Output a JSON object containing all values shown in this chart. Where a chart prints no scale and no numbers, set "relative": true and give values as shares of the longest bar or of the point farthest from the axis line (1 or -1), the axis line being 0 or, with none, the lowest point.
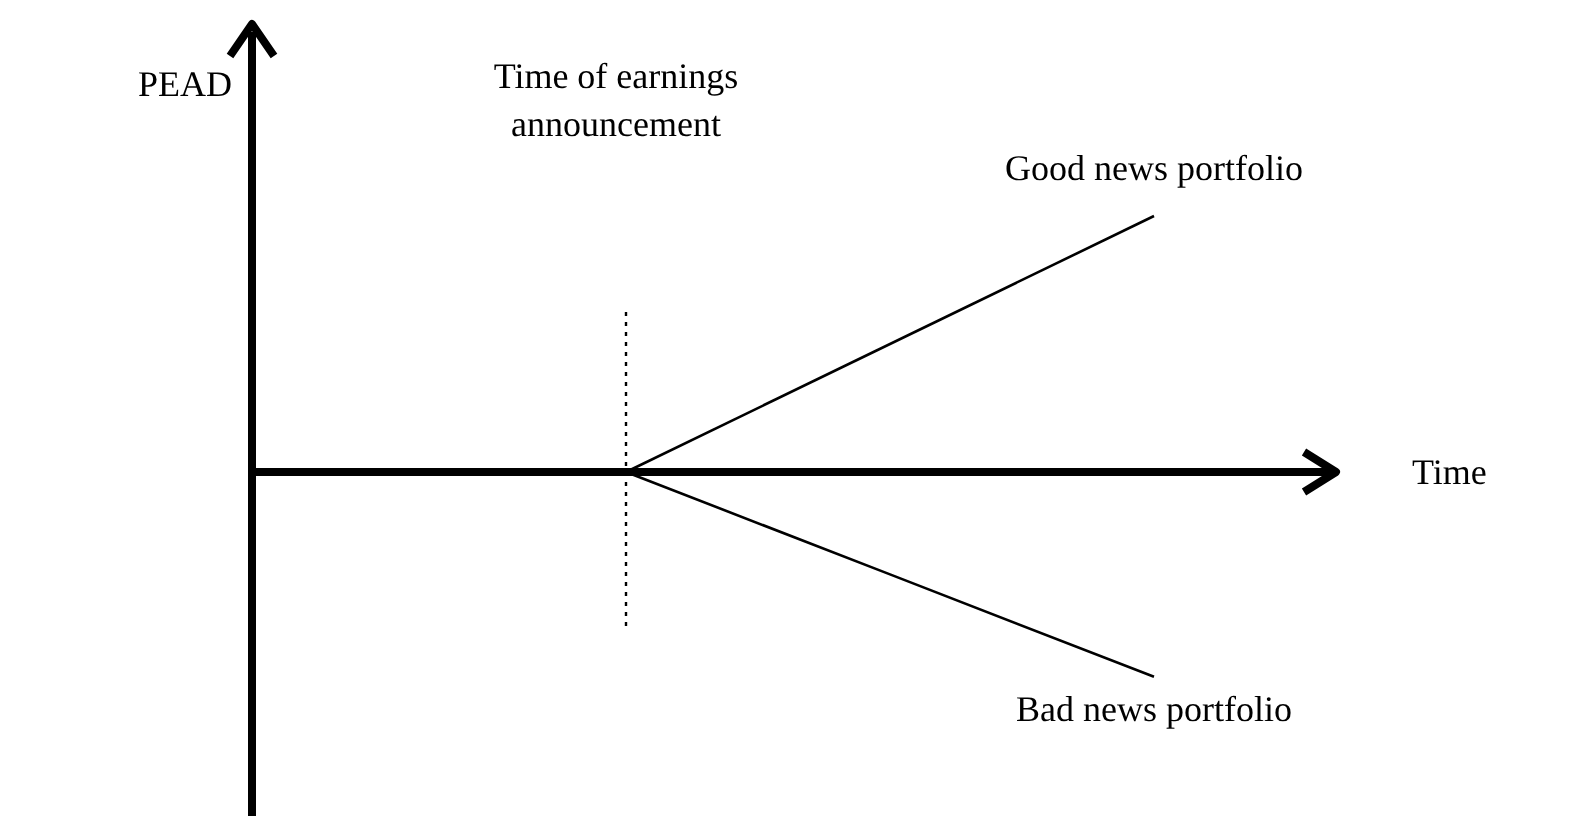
{
  "chart_data": {
    "type": "line",
    "relative": true,
    "xlabel": "Time",
    "annotations": [
      "PEAD"
    ],
    "categories": [
      null,
      null,
      null
    ],
    "series": [
      {
        "name": "Good news portfolio",
        "color": "#000000",
        "values": [
          0,
          0.5,
          1
        ]
      },
      {
        "name": "Bad news portfolio",
        "color": "#000000",
        "values": [
          0,
          -0.4,
          -0.8
        ]
      }
    ],
    "ref_lines": [
      {
        "axis": "x",
        "label": "Time of earnings announcement",
        "line_style": "dotted",
        "color": "#000000"
      }
    ]
  }
}
